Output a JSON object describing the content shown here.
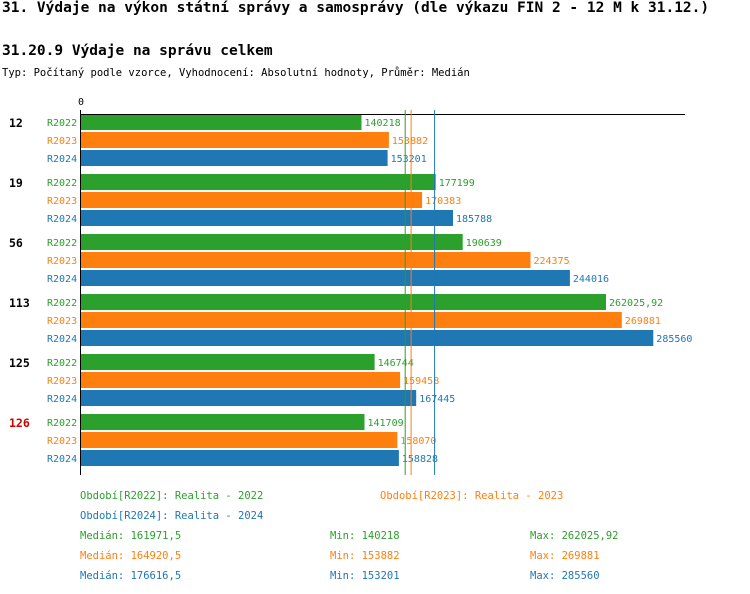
{
  "page_title": "31. Výdaje na výkon státní správy a samosprávy (dle výkazu FIN 2 - 12 M k 31.12.)",
  "section_title": "31.20.9 Výdaje na správu celkem",
  "subtitle": "Typ: Počítaný podle vzorce, Vyhodnocení: Absolutní hodnoty, Průměr: Medián",
  "colors": {
    "R2022": "#2ca02c",
    "R2023": "#ff7f0e",
    "R2024": "#1f77b4",
    "highlight": "#cc0000"
  },
  "chart_data": {
    "type": "bar",
    "orientation": "horizontal",
    "axis_zero_label": "0",
    "xlim": [
      0,
      300000
    ],
    "series_names": [
      "R2022",
      "R2023",
      "R2024"
    ],
    "groups": [
      {
        "label": "12",
        "highlight": false,
        "values": [
          140218,
          153882,
          153201
        ],
        "value_labels": [
          "140218",
          "153882",
          "153201"
        ]
      },
      {
        "label": "19",
        "highlight": false,
        "values": [
          177199,
          170383,
          185788
        ],
        "value_labels": [
          "177199",
          "170383",
          "185788"
        ]
      },
      {
        "label": "56",
        "highlight": false,
        "values": [
          190639,
          224375,
          244016
        ],
        "value_labels": [
          "190639",
          "224375",
          "244016"
        ]
      },
      {
        "label": "113",
        "highlight": false,
        "values": [
          262025.92,
          269881,
          285560
        ],
        "value_labels": [
          "262025,92",
          "269881",
          "285560"
        ]
      },
      {
        "label": "125",
        "highlight": false,
        "values": [
          146744,
          159458,
          167445
        ],
        "value_labels": [
          "146744",
          "159458",
          "167445"
        ]
      },
      {
        "label": "126",
        "highlight": true,
        "values": [
          141709,
          158070,
          158828
        ],
        "value_labels": [
          "141709",
          "158070",
          "158828"
        ]
      }
    ],
    "medians": [
      161971.5,
      164920.5,
      176616.5
    ]
  },
  "legend": {
    "period_2022": "Období[R2022]: Realita - 2022",
    "period_2023": "Období[R2023]: Realita - 2023",
    "period_2024": "Období[R2024]: Realita - 2024",
    "stats": [
      {
        "median": "Medián: 161971,5",
        "min": "Min: 140218",
        "max": "Max: 262025,92"
      },
      {
        "median": "Medián: 164920,5",
        "min": "Min: 153882",
        "max": "Max: 269881"
      },
      {
        "median": "Medián: 176616,5",
        "min": "Min: 153201",
        "max": "Max: 285560"
      }
    ]
  }
}
